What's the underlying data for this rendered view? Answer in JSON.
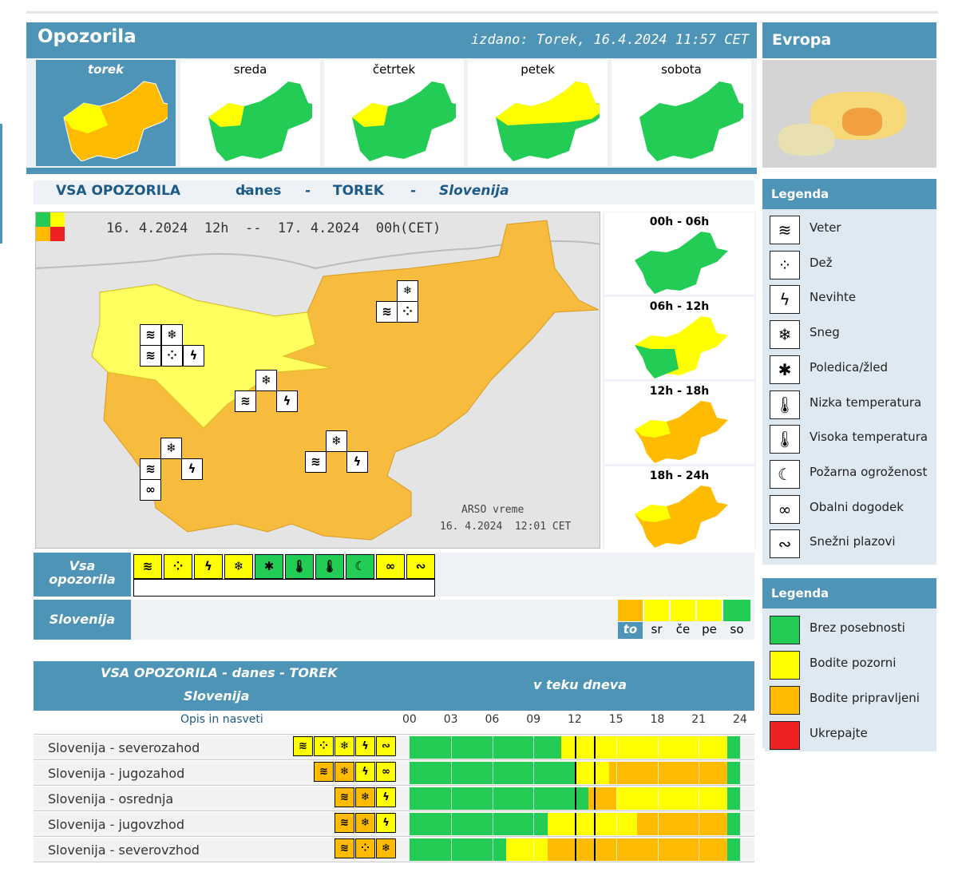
{
  "header": {
    "title": "Opozorila",
    "issued": "izdano: Torek, 16.4.2024 11:57 CET",
    "europe": "Evropa"
  },
  "days": [
    {
      "label": "torek",
      "selected": true
    },
    {
      "label": "sreda"
    },
    {
      "label": "četrtek"
    },
    {
      "label": "petek"
    },
    {
      "label": "sobota"
    }
  ],
  "section": {
    "all": "VSA OPOZORILA",
    "sep": "-",
    "today": "danes",
    "day": "TOREK",
    "region": "Slovenija"
  },
  "map": {
    "period": "16. 4.2024  12h  --  17. 4.2024  00h",
    "tz": "(CET)",
    "credit": "ARSO vreme",
    "credit_time": "16. 4.2024  12:01 CET"
  },
  "slots": [
    "00h - 06h",
    "06h - 12h",
    "12h - 18h",
    "18h - 24h"
  ],
  "filter": {
    "all_label_1": "Vsa",
    "all_label_2": "opozorila",
    "region_label": "Slovenija",
    "day_abbr": [
      "to",
      "sr",
      "če",
      "pe",
      "so"
    ]
  },
  "legend1": {
    "title": "Legenda",
    "items": [
      "Veter",
      "Dež",
      "Nevihte",
      "Sneg",
      "Poledica/žled",
      "Nizka temperatura",
      "Visoka temperatura",
      "Požarna ogroženost",
      "Obalni dogodek",
      "Snežni plazovi"
    ],
    "icons": [
      "wind-icon",
      "rain-icon",
      "thunderstorm-icon",
      "snow-icon",
      "ice-icon",
      "low-temperature-icon",
      "high-temperature-icon",
      "fire-icon",
      "coastal-icon",
      "avalanche-icon"
    ]
  },
  "legend2": {
    "title": "Legenda",
    "items": [
      "Brez posebnosti",
      "Bodite pozorni",
      "Bodite pripravljeni",
      "Ukrepajte"
    ],
    "colors": [
      "#22cc55",
      "#ffff00",
      "#ffbb00",
      "#ee2222"
    ]
  },
  "table": {
    "title_1": "VSA OPOZORILA - danes - TOREK",
    "title_2": "Slovenija",
    "during_day": "v teku dneva",
    "desc_link": "Opis in nasveti",
    "ticks": [
      "00",
      "03",
      "06",
      "09",
      "12",
      "15",
      "18",
      "21",
      "24"
    ],
    "rows": [
      {
        "name": "Slovenija - severozahod",
        "timeline": [
          [
            "g",
            0,
            11
          ],
          [
            "y",
            11,
            23.1
          ],
          [
            "g",
            23.1,
            24
          ]
        ]
      },
      {
        "name": "Slovenija - jugozahod",
        "timeline": [
          [
            "g",
            0,
            12
          ],
          [
            "y",
            12,
            14.5
          ],
          [
            "o",
            14.5,
            23.1
          ],
          [
            "g",
            23.1,
            24
          ]
        ]
      },
      {
        "name": "Slovenija - osrednja",
        "timeline": [
          [
            "g",
            0,
            13
          ],
          [
            "o",
            13,
            15
          ],
          [
            "y",
            15,
            23.1
          ],
          [
            "g",
            23.1,
            24
          ]
        ]
      },
      {
        "name": "Slovenija - jugovzhod",
        "timeline": [
          [
            "g",
            0,
            10
          ],
          [
            "y",
            10,
            16.5
          ],
          [
            "o",
            16.5,
            23.1
          ],
          [
            "g",
            23.1,
            24
          ]
        ]
      },
      {
        "name": "Slovenija - severovzhod",
        "timeline": [
          [
            "g",
            0,
            7
          ],
          [
            "y",
            7,
            10
          ],
          [
            "o",
            10,
            23.1
          ],
          [
            "g",
            23.1,
            24
          ]
        ]
      }
    ]
  }
}
